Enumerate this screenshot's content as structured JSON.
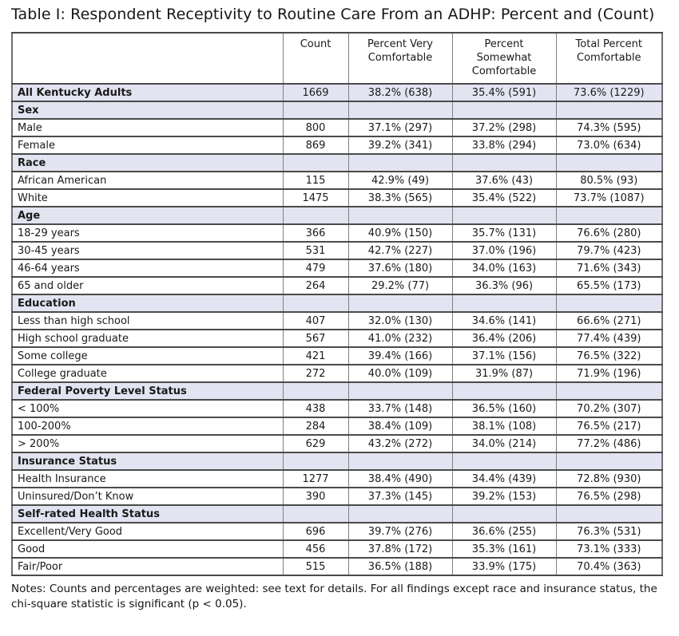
{
  "title": "Table I: Respondent Receptivity to Routine Care From an ADHP: Percent and (Count)",
  "notes": "Notes: Counts and percentages are weighted: see text for details. For all findings except race and insurance status, the chi-square statistic is significant (p < 0.05).",
  "colors": {
    "section_row_bg": "#e3e4f1",
    "grid_vertical": "#7f7f7f",
    "grid_horizontal": "#4a4a4a"
  },
  "table": {
    "columns": [
      "",
      "Count",
      "Percent Very Comfortable",
      "Percent Somewhat Comfortable",
      "Total Percent Comfortable"
    ],
    "rows": [
      {
        "type": "total",
        "label": "All Kentucky Adults",
        "count": "1669",
        "very": "38.2% (638)",
        "somewhat": "35.4% (591)",
        "total": "73.6% (1229)"
      },
      {
        "type": "section",
        "label": "Sex",
        "count": "",
        "very": "",
        "somewhat": "",
        "total": ""
      },
      {
        "type": "data",
        "label": "Male",
        "count": "800",
        "very": "37.1% (297)",
        "somewhat": "37.2% (298)",
        "total": "74.3% (595)"
      },
      {
        "type": "data",
        "label": "Female",
        "count": "869",
        "very": "39.2% (341)",
        "somewhat": "33.8% (294)",
        "total": "73.0% (634)"
      },
      {
        "type": "section",
        "label": "Race",
        "count": "",
        "very": "",
        "somewhat": "",
        "total": ""
      },
      {
        "type": "data",
        "label": "African American",
        "count": "115",
        "very": "42.9% (49)",
        "somewhat": "37.6% (43)",
        "total": "80.5% (93)"
      },
      {
        "type": "data",
        "label": "White",
        "count": "1475",
        "very": "38.3% (565)",
        "somewhat": "35.4% (522)",
        "total": "73.7% (1087)"
      },
      {
        "type": "section",
        "label": "Age",
        "count": "",
        "very": "",
        "somewhat": "",
        "total": ""
      },
      {
        "type": "data",
        "label": "18-29 years",
        "count": "366",
        "very": "40.9% (150)",
        "somewhat": "35.7% (131)",
        "total": "76.6% (280)"
      },
      {
        "type": "data",
        "label": "30-45 years",
        "count": "531",
        "very": "42.7% (227)",
        "somewhat": "37.0% (196)",
        "total": "79.7% (423)"
      },
      {
        "type": "data",
        "label": "46-64 years",
        "count": "479",
        "very": "37.6% (180)",
        "somewhat": "34.0% (163)",
        "total": "71.6% (343)"
      },
      {
        "type": "data",
        "label": "65 and older",
        "count": "264",
        "very": "29.2% (77)",
        "somewhat": "36.3% (96)",
        "total": "65.5% (173)"
      },
      {
        "type": "section",
        "label": "Education",
        "count": "",
        "very": "",
        "somewhat": "",
        "total": ""
      },
      {
        "type": "data",
        "label": "Less than high school",
        "count": "407",
        "very": "32.0% (130)",
        "somewhat": "34.6% (141)",
        "total": "66.6% (271)"
      },
      {
        "type": "data",
        "label": "High school graduate",
        "count": "567",
        "very": "41.0% (232)",
        "somewhat": "36.4% (206)",
        "total": "77.4% (439)"
      },
      {
        "type": "data",
        "label": "Some college",
        "count": "421",
        "very": "39.4% (166)",
        "somewhat": "37.1% (156)",
        "total": "76.5% (322)"
      },
      {
        "type": "data",
        "label": "College graduate",
        "count": "272",
        "very": "40.0% (109)",
        "somewhat": "31.9% (87)",
        "total": "71.9% (196)"
      },
      {
        "type": "section",
        "label": "Federal Poverty Level Status",
        "count": "",
        "very": "",
        "somewhat": "",
        "total": ""
      },
      {
        "type": "data",
        "label": "< 100%",
        "count": "438",
        "very": "33.7% (148)",
        "somewhat": "36.5% (160)",
        "total": "70.2% (307)"
      },
      {
        "type": "data",
        "label": "100-200%",
        "count": "284",
        "very": "38.4% (109)",
        "somewhat": "38.1% (108)",
        "total": "76.5% (217)"
      },
      {
        "type": "data",
        "label": "> 200%",
        "count": "629",
        "very": "43.2% (272)",
        "somewhat": "34.0% (214)",
        "total": "77.2% (486)"
      },
      {
        "type": "section",
        "label": "Insurance Status",
        "count": "",
        "very": "",
        "somewhat": "",
        "total": ""
      },
      {
        "type": "data",
        "label": "Health Insurance",
        "count": "1277",
        "very": "38.4% (490)",
        "somewhat": "34.4% (439)",
        "total": "72.8% (930)"
      },
      {
        "type": "data",
        "label": "Uninsured/Don’t Know",
        "count": "390",
        "very": "37.3% (145)",
        "somewhat": "39.2% (153)",
        "total": "76.5% (298)"
      },
      {
        "type": "section",
        "label": "Self-rated Health Status",
        "count": "",
        "very": "",
        "somewhat": "",
        "total": ""
      },
      {
        "type": "data",
        "label": "Excellent/Very Good",
        "count": "696",
        "very": "39.7% (276)",
        "somewhat": "36.6% (255)",
        "total": "76.3% (531)"
      },
      {
        "type": "data",
        "label": "Good",
        "count": "456",
        "very": "37.8% (172)",
        "somewhat": "35.3% (161)",
        "total": "73.1% (333)"
      },
      {
        "type": "data",
        "label": "Fair/Poor",
        "count": "515",
        "very": "36.5% (188)",
        "somewhat": "33.9% (175)",
        "total": "70.4% (363)"
      }
    ]
  }
}
